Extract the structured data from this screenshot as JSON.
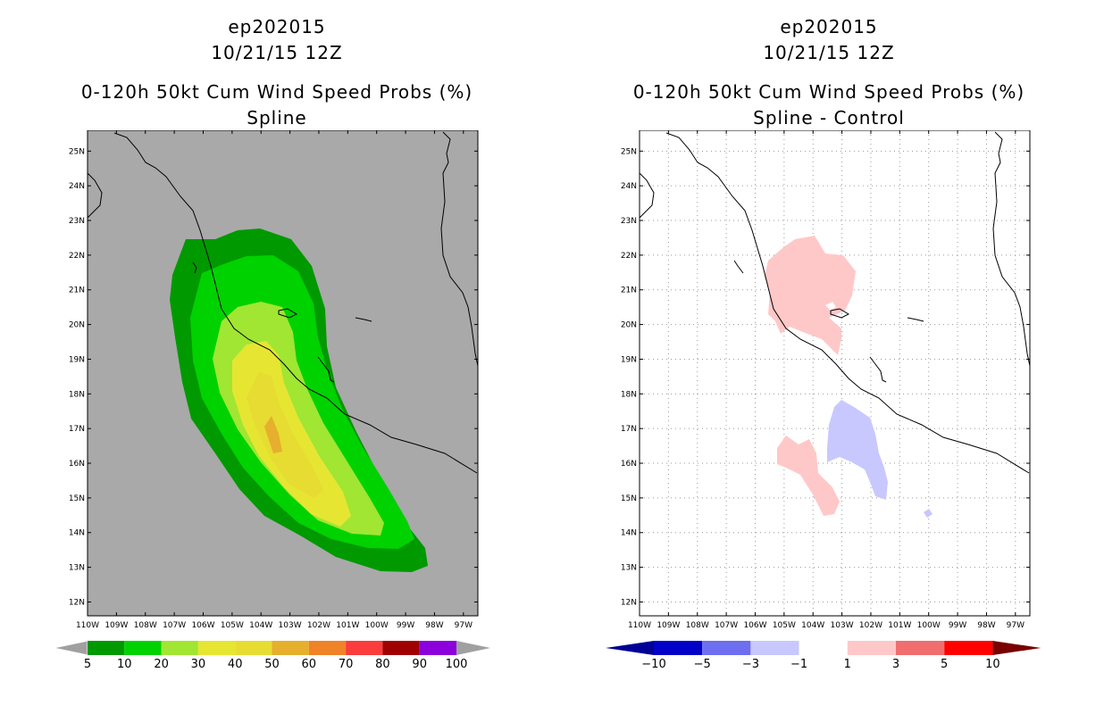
{
  "left": {
    "title": [
      "ep202015",
      "10/21/15 12Z",
      "0-120h 50kt Cum Wind Speed Probs (%)",
      "Spline"
    ],
    "colorbar": {
      "labels": [
        "5",
        "10",
        "20",
        "30",
        "40",
        "50",
        "60",
        "70",
        "80",
        "90",
        "100"
      ],
      "colors": [
        "#009900",
        "#00d200",
        "#a0e632",
        "#e6e632",
        "#e6dc32",
        "#e6af2d",
        "#f08228",
        "#fa3c3c",
        "#a00000",
        "#8c00dc"
      ],
      "end_color": "#a0a0a0"
    },
    "background": "#a9a9a9"
  },
  "right": {
    "title": [
      "ep202015",
      "10/21/15 12Z",
      "0-120h 50kt Cum Wind Speed Probs (%)",
      "Spline - Control"
    ],
    "colorbar": {
      "labels": [
        "-10",
        "-5",
        "-3",
        "-1",
        "1",
        "3",
        "5",
        "10"
      ],
      "colors": [
        "#0000c8",
        "#6e6ef0",
        "#c8c8ff",
        "#ffffff",
        "#ffc8c8",
        "#f06e6e",
        "#ff0000"
      ],
      "low_color": "#000096",
      "high_color": "#780000"
    },
    "background": "#ffffff"
  },
  "axes": {
    "lat_labels": [
      "12N",
      "13N",
      "14N",
      "15N",
      "16N",
      "17N",
      "18N",
      "19N",
      "20N",
      "21N",
      "22N",
      "23N",
      "24N",
      "25N"
    ],
    "lon_labels": [
      "110W",
      "109W",
      "108W",
      "107W",
      "106W",
      "105W",
      "104W",
      "103W",
      "102W",
      "101W",
      "100W",
      "99W",
      "98W",
      "97W"
    ],
    "lat_range": [
      11.6,
      25.6
    ],
    "lon_range": [
      -110.0,
      -96.5
    ]
  }
}
